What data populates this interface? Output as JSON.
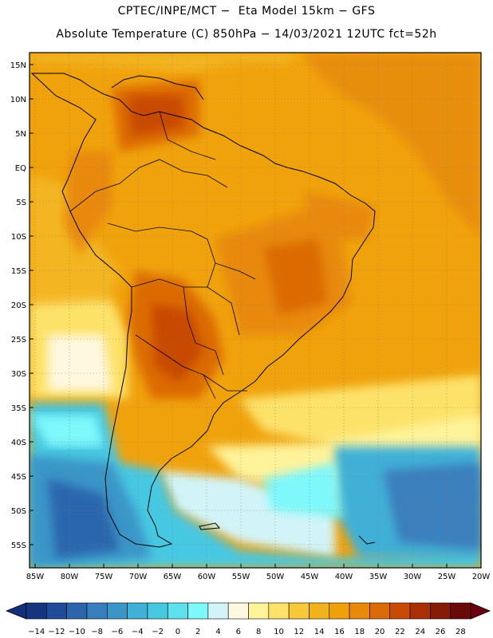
{
  "header": {
    "line1": "CPTEC/INPE/MCT −  Eta Model 15km − GFS",
    "line2": "Absolute Temperature (C) 850hPa − 14/03/2021 12UTC fct=52h"
  },
  "axes": {
    "lat_labels": [
      "15N",
      "10N",
      "5N",
      "EQ",
      "5S",
      "10S",
      "15S",
      "20S",
      "25S",
      "30S",
      "35S",
      "40S",
      "45S",
      "50S",
      "55S"
    ],
    "lon_labels": [
      "85W",
      "80W",
      "75W",
      "70W",
      "65W",
      "60W",
      "55W",
      "50W",
      "45W",
      "40W",
      "35W",
      "30W",
      "25W",
      "20W"
    ]
  },
  "colorbar": {
    "tick_labels": [
      "-14",
      "-12",
      "-10",
      "-8",
      "-6",
      "-4",
      "-2",
      "0",
      "2",
      "4",
      "6",
      "8",
      "10",
      "12",
      "14",
      "16",
      "18",
      "20",
      "22",
      "24",
      "26",
      "28"
    ],
    "colors": [
      "#16357f",
      "#1f4b9a",
      "#2b66ad",
      "#3a7fbd",
      "#3b96c8",
      "#3fb0d6",
      "#46c8e2",
      "#5ee0ee",
      "#7ef8fa",
      "#d2f4f8",
      "#fff8e1",
      "#fff39a",
      "#fde26a",
      "#f7c83a",
      "#f1b31c",
      "#f0a00a",
      "#e8890a",
      "#dc6a06",
      "#c84a04",
      "#a93004",
      "#871c06",
      "#6a0a08"
    ],
    "under_color": "#12307a",
    "over_color": "#6a0010"
  }
}
